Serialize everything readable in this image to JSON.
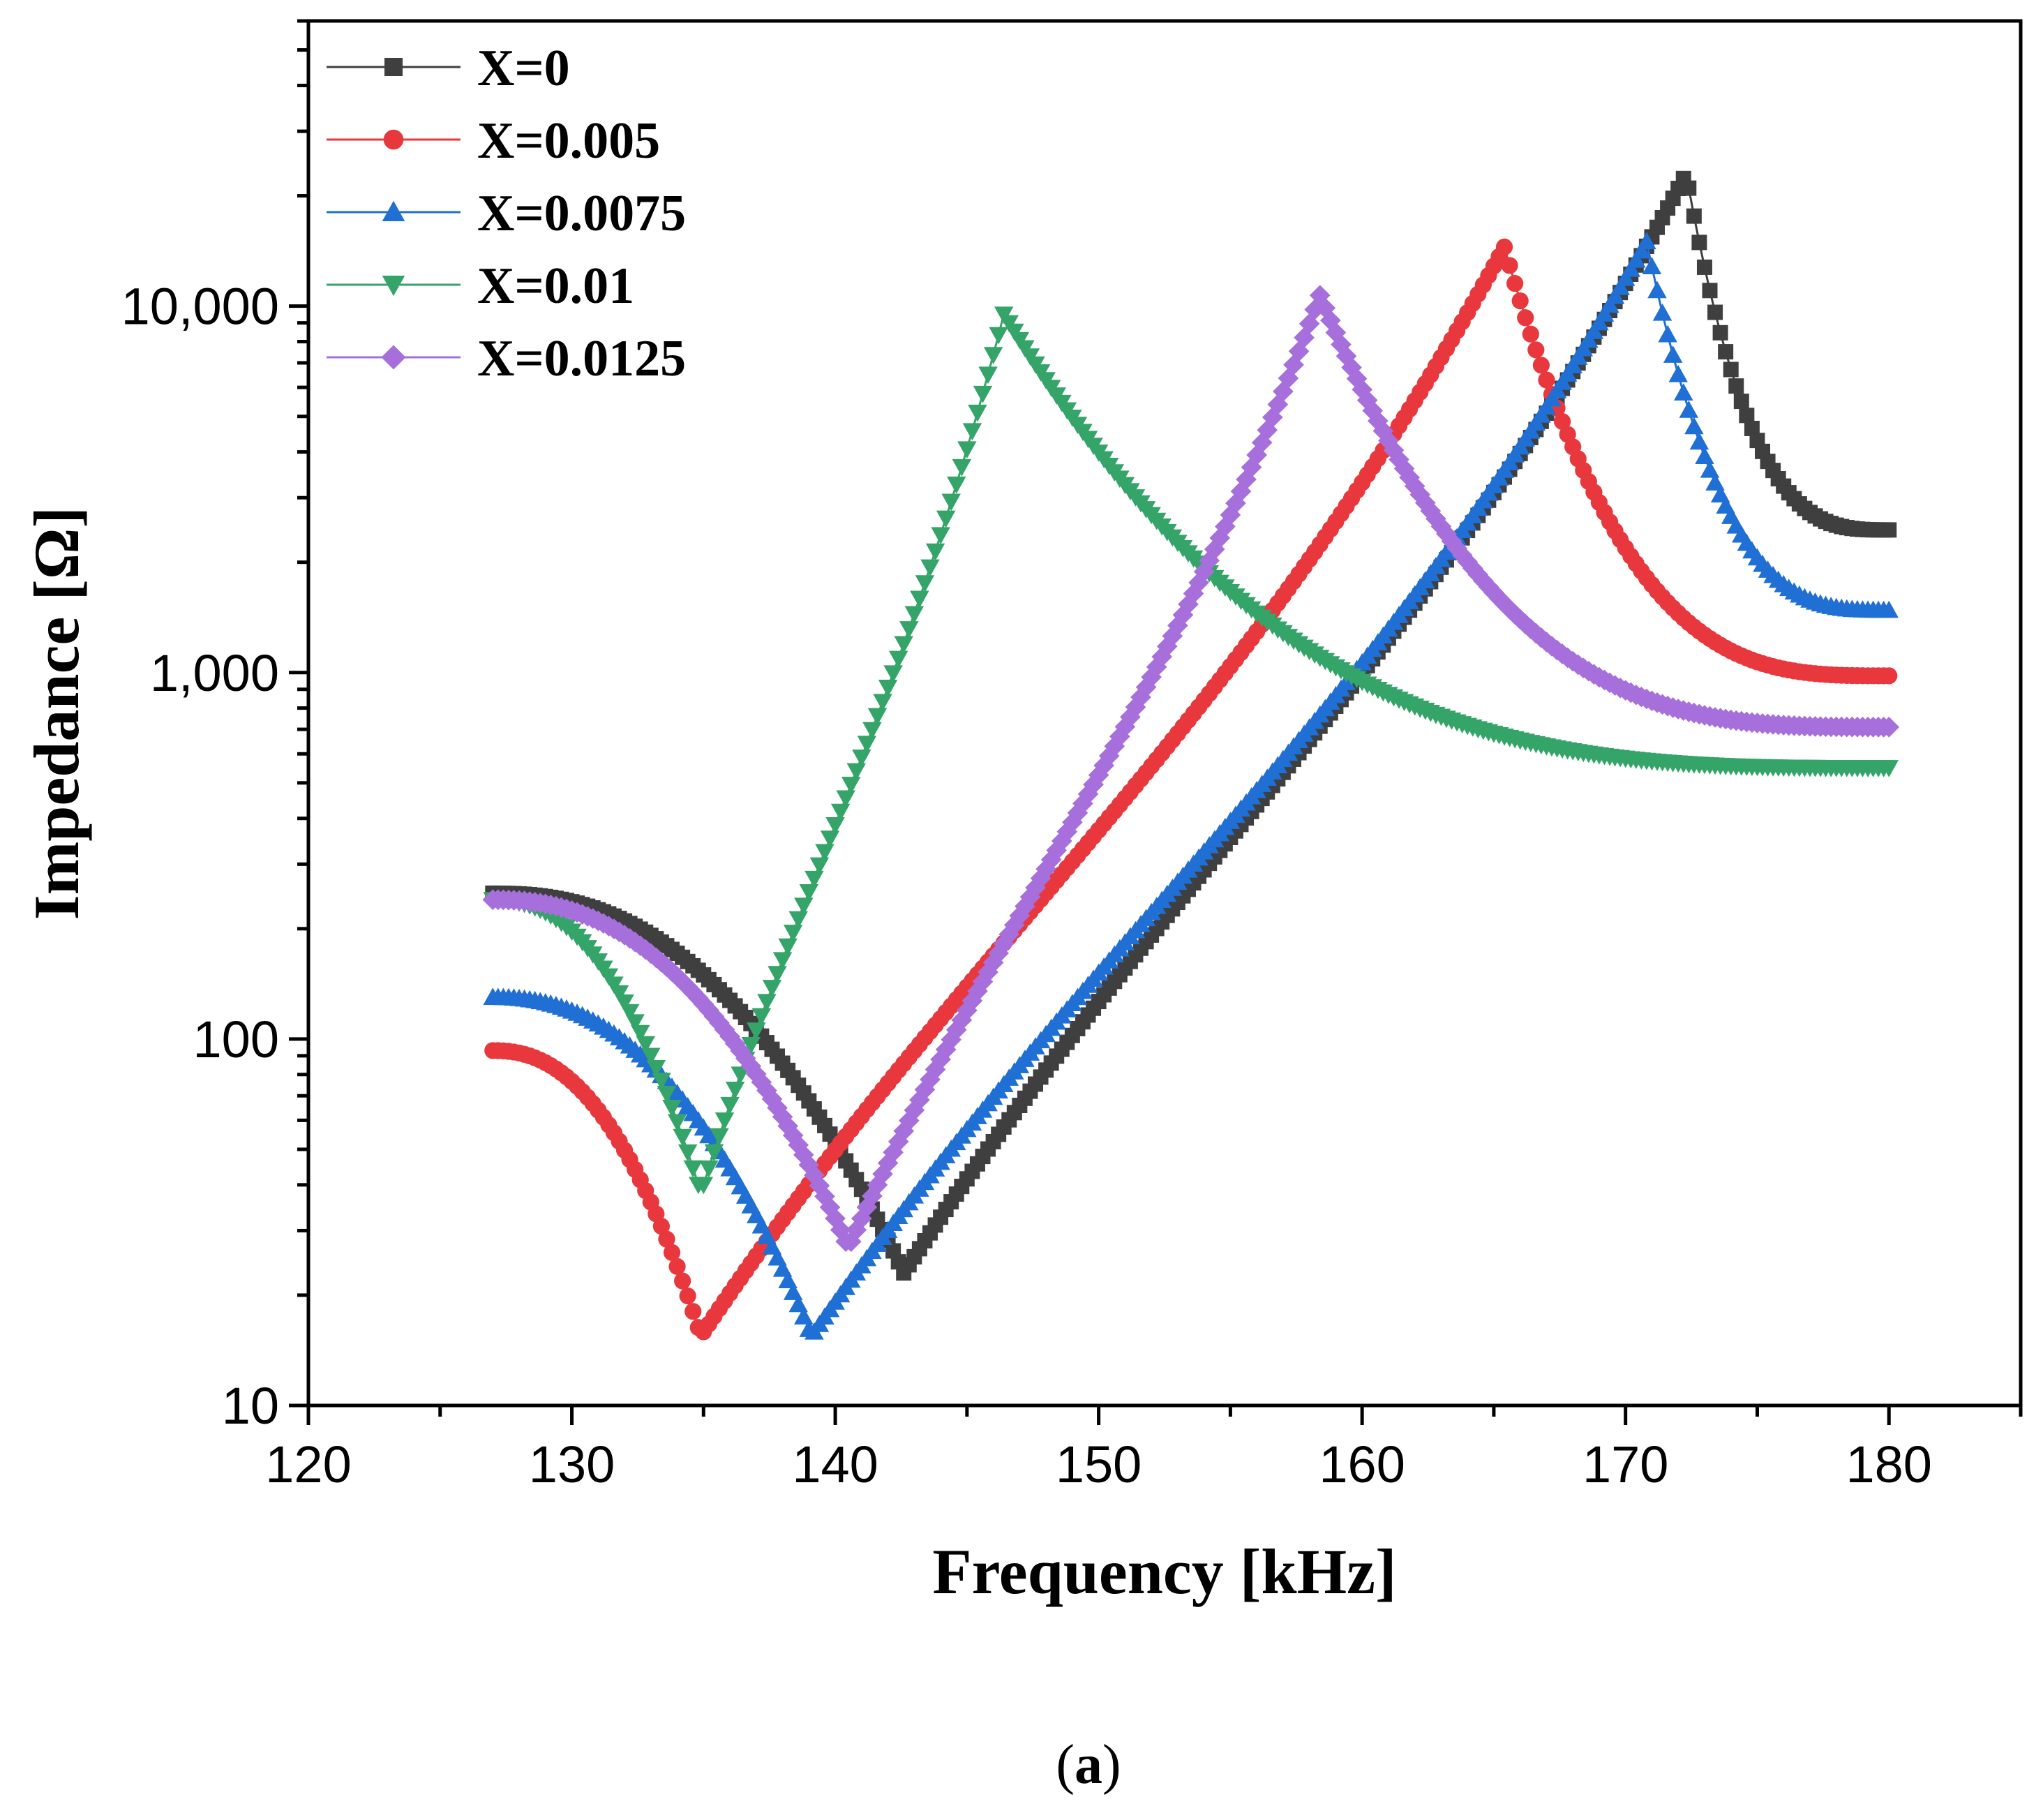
{
  "chart_data": {
    "type": "scatter",
    "title": "",
    "xlabel": "Frequency [kHz]",
    "ylabel": "Impedance [Ω]",
    "xlim": [
      120,
      185
    ],
    "ylim": [
      10,
      60000
    ],
    "yscale": "log",
    "x_ticks": [
      120,
      130,
      140,
      150,
      160,
      170,
      180
    ],
    "x_tick_labels": [
      "120",
      "130",
      "140",
      "150",
      "160",
      "170",
      "180"
    ],
    "y_ticks": [
      10,
      100,
      1000,
      10000
    ],
    "y_tick_labels": [
      "10",
      "100",
      "1,000",
      "10,000"
    ],
    "legend_position": "top-left",
    "caption": {
      "open": "(",
      "label": "a",
      "close": ")"
    },
    "series": [
      {
        "name": "X=0",
        "color": "#3f3f3f",
        "marker": "square",
        "fr": 142.6,
        "zmin": 23,
        "fa": 172.3,
        "zmax": 23000,
        "start_z": 250,
        "end_z": 2450
      },
      {
        "name": "X=0.005",
        "color": "#e8383d",
        "marker": "circle",
        "fr": 134.9,
        "zmin": 15.5,
        "fa": 165.4,
        "zmax": 14500,
        "start_z": 93,
        "end_z": 980
      },
      {
        "name": "X=0.0075",
        "color": "#1f6fd4",
        "marker": "triangle-up",
        "fr": 139.1,
        "zmin": 15.5,
        "fa": 170.8,
        "zmax": 15000,
        "start_z": 130,
        "end_z": 1480
      },
      {
        "name": "X=0.01",
        "color": "#35a469",
        "marker": "triangle-down",
        "fr": 134.9,
        "zmin": 38,
        "fa": 146.4,
        "zmax": 9500,
        "start_z": 240,
        "end_z": 550
      },
      {
        "name": "X=0.0125",
        "color": "#a66fdb",
        "marker": "diamond",
        "fr": 140.5,
        "zmin": 27,
        "fa": 158.4,
        "zmax": 10700,
        "start_z": 240,
        "end_z": 710
      }
    ]
  }
}
